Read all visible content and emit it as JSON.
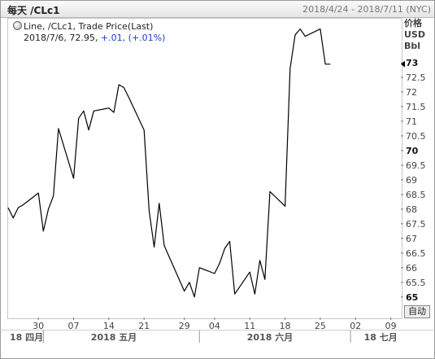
{
  "header": {
    "title": "每天 /CLc1",
    "date_range": "2018/4/24 - 2018/7/11 (NYC)"
  },
  "legend": {
    "line1": "Line, /CLc1, Trade Price(Last)",
    "date": "2018/7/6,",
    "value": "72.95,",
    "change": "+.01,",
    "change_pct": "(+.01%)"
  },
  "units": [
    "价格",
    "USD",
    "Bbl"
  ],
  "autoscale_label": "自动",
  "colors": {
    "line": "#000000",
    "change": "#1a3ccf",
    "frame": "#9a9a9a"
  },
  "chart_data": {
    "type": "line",
    "title": "每天 /CLc1",
    "series": [
      {
        "name": "/CLc1",
        "x": [
          "2018-04-24",
          "2018-04-25",
          "2018-04-26",
          "2018-04-27",
          "2018-04-30",
          "2018-05-01",
          "2018-05-02",
          "2018-05-03",
          "2018-05-04",
          "2018-05-07",
          "2018-05-08",
          "2018-05-09",
          "2018-05-10",
          "2018-05-11",
          "2018-05-14",
          "2018-05-15",
          "2018-05-16",
          "2018-05-17",
          "2018-05-18",
          "2018-05-21",
          "2018-05-22",
          "2018-05-23",
          "2018-05-24",
          "2018-05-25",
          "2018-05-29",
          "2018-05-30",
          "2018-05-31",
          "2018-06-01",
          "2018-06-04",
          "2018-06-05",
          "2018-06-06",
          "2018-06-07",
          "2018-06-08",
          "2018-06-11",
          "2018-06-12",
          "2018-06-13",
          "2018-06-14",
          "2018-06-15",
          "2018-06-18",
          "2018-06-19",
          "2018-06-20",
          "2018-06-21",
          "2018-06-22",
          "2018-06-25",
          "2018-06-26",
          "2018-06-27",
          "2018-06-28",
          "2018-06-29",
          "2018-07-02",
          "2018-07-03",
          "2018-07-05",
          "2018-07-06"
        ],
        "values": [
          68.05,
          67.7,
          68.05,
          68.15,
          68.55,
          67.25,
          68.0,
          68.45,
          70.75,
          69.05,
          71.1,
          71.35,
          70.7,
          71.35,
          71.45,
          71.3,
          72.25,
          72.15,
          71.8,
          70.7,
          67.95,
          66.7,
          68.2,
          66.75,
          65.2,
          65.5,
          65.0,
          66.0,
          65.8,
          66.15,
          66.65,
          66.9,
          65.1,
          65.85,
          65.1,
          66.25,
          65.6,
          68.6,
          68.1,
          72.8,
          73.95,
          74.15,
          73.9,
          74.15,
          72.95,
          72.95,
          null,
          null,
          null,
          null,
          null,
          null
        ]
      }
    ],
    "y_ticks": [
      65,
      65.5,
      66,
      66.5,
      67,
      67.5,
      68,
      68.5,
      69,
      69.5,
      70,
      70.5,
      71,
      71.5,
      72,
      72.5,
      73
    ],
    "y_tick_labels": [
      "65",
      "65.5",
      "66",
      "66.5",
      "67",
      "67.5",
      "68",
      "68.5",
      "69",
      "69.5",
      "70",
      "70.5",
      "71",
      "71.5",
      "72",
      "72.5",
      "73"
    ],
    "y_bold_ticks": [
      "65",
      "70",
      "73"
    ],
    "ylim": [
      64.3,
      74.5
    ],
    "x_ticks": [
      "2018-04-30",
      "2018-05-07",
      "2018-05-14",
      "2018-05-21",
      "2018-05-29",
      "2018-06-04",
      "2018-06-11",
      "2018-06-18",
      "2018-06-25",
      "2018-07-02",
      "2018-07-09"
    ],
    "x_tick_labels": [
      "30",
      "07",
      "14",
      "21",
      "29",
      "04",
      "11",
      "18",
      "25",
      "02",
      "09"
    ],
    "month_labels": [
      {
        "date": "2018-04-18",
        "text": "18 四月"
      },
      {
        "date": "2018-05-15",
        "text": "2018 五月"
      },
      {
        "date": "2018-06-15",
        "text": "2018 六月"
      },
      {
        "date": "2018-07-07",
        "text": "18 七月"
      }
    ],
    "month_separators": [
      "2018-05-01",
      "2018-06-01",
      "2018-07-01"
    ],
    "xlim": [
      "2018-04-24",
      "2018-07-11"
    ],
    "last_value": 72.95,
    "grid": false
  }
}
